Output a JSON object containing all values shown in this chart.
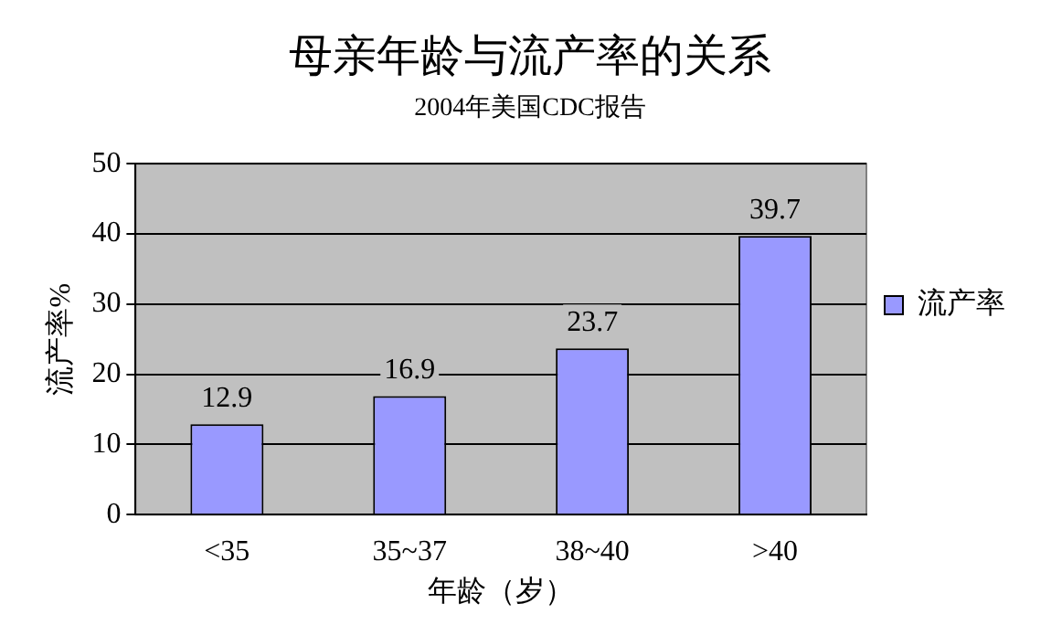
{
  "chart_data": {
    "type": "bar",
    "title": "母亲年龄与流产率的关系",
    "subtitle": "2004年美国CDC报告",
    "xlabel": "年龄（岁）",
    "ylabel": "流产率%",
    "categories": [
      "<35",
      "35~37",
      "38~40",
      ">40"
    ],
    "series": [
      {
        "name": "流产率",
        "color": "#9999ff",
        "values": [
          12.9,
          16.9,
          23.7,
          39.7
        ]
      }
    ],
    "ylim": [
      0,
      50
    ],
    "yticks": [
      0,
      10,
      20,
      30,
      40,
      50
    ],
    "grid": "y",
    "legend": "right",
    "data_labels": true
  }
}
